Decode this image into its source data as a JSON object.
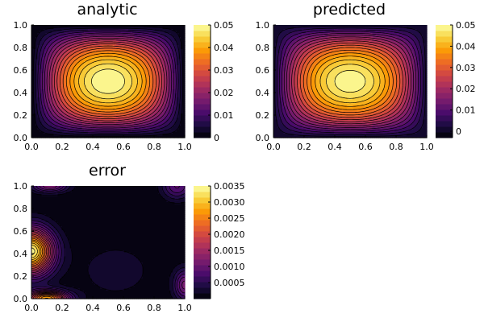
{
  "colors": {
    "background": "#ffffff",
    "axis": "#000000",
    "contour_line": "#000000",
    "colormap": "inferno",
    "colormap_stops": [
      "#000004",
      "#1b0c41",
      "#4a0c6b",
      "#781c6d",
      "#a52c60",
      "#cf4446",
      "#ed6925",
      "#fb9b06",
      "#f7d13d",
      "#fcffa4"
    ]
  },
  "chart_data": [
    {
      "type": "heatmap",
      "style": "filled-contour",
      "title": "analytic",
      "xlabel": "",
      "ylabel": "",
      "xlim": [
        0,
        1
      ],
      "ylim": [
        0,
        1
      ],
      "x_ticks": [
        "0.0",
        "0.2",
        "0.4",
        "0.6",
        "0.8",
        "1.0"
      ],
      "y_ticks": [
        "0.0",
        "0.2",
        "0.4",
        "0.6",
        "0.8",
        "1.0"
      ],
      "field": "u(x,y) = 0.05 * sin(pi*x) * sin(pi*y)",
      "peak": {
        "x": 0.5,
        "y": 0.5,
        "value": 0.05
      },
      "zlim": [
        0,
        0.05
      ],
      "levels": 20,
      "colorbar_ticks": [
        {
          "value": 0,
          "label": "0"
        },
        {
          "value": 0.01,
          "label": "0.01"
        },
        {
          "value": 0.02,
          "label": "0.02"
        },
        {
          "value": 0.03,
          "label": "0.03"
        },
        {
          "value": 0.04,
          "label": "0.04"
        },
        {
          "value": 0.05,
          "label": "0.05"
        }
      ],
      "grid": false
    },
    {
      "type": "heatmap",
      "style": "filled-contour",
      "title": "predicted",
      "xlabel": "",
      "ylabel": "",
      "xlim": [
        0,
        1
      ],
      "ylim": [
        0,
        1
      ],
      "x_ticks": [
        "0.0",
        "0.2",
        "0.4",
        "0.6",
        "0.8",
        "1.0"
      ],
      "y_ticks": [
        "0.0",
        "0.2",
        "0.4",
        "0.6",
        "0.8",
        "1.0"
      ],
      "field": "u(x,y) = 0.05 * sin(pi*x) * sin(pi*y)",
      "peak": {
        "x": 0.5,
        "y": 0.5,
        "value": 0.05
      },
      "zlim": [
        -0.003,
        0.05
      ],
      "levels": 20,
      "colorbar_ticks": [
        {
          "value": 0,
          "label": "0"
        },
        {
          "value": 0.01,
          "label": "0.01"
        },
        {
          "value": 0.02,
          "label": "0.02"
        },
        {
          "value": 0.03,
          "label": "0.03"
        },
        {
          "value": 0.04,
          "label": "0.04"
        },
        {
          "value": 0.05,
          "label": "0.05"
        }
      ],
      "grid": false
    },
    {
      "type": "heatmap",
      "style": "filled-contour",
      "title": "error",
      "xlabel": "",
      "ylabel": "",
      "xlim": [
        0,
        1
      ],
      "ylim": [
        0,
        1
      ],
      "x_ticks": [
        "0.0",
        "0.2",
        "0.4",
        "0.6",
        "0.8",
        "1.0"
      ],
      "y_ticks": [
        "0.0",
        "0.2",
        "0.4",
        "0.6",
        "0.8",
        "1.0"
      ],
      "field": "absolute error |analytic - predicted|, largest near the left edge around y = 0.4",
      "max_error": {
        "x": 0.0,
        "y": 0.4,
        "value": 0.0033
      },
      "zlim": [
        0,
        0.0035
      ],
      "levels": 20,
      "colorbar_ticks": [
        {
          "value": 0.0005,
          "label": "0.0005"
        },
        {
          "value": 0.001,
          "label": "0.0010"
        },
        {
          "value": 0.0015,
          "label": "0.0015"
        },
        {
          "value": 0.002,
          "label": "0.0020"
        },
        {
          "value": 0.0025,
          "label": "0.0025"
        },
        {
          "value": 0.003,
          "label": "0.0030"
        },
        {
          "value": 0.0035,
          "label": "0.0035"
        }
      ],
      "grid": false
    }
  ]
}
